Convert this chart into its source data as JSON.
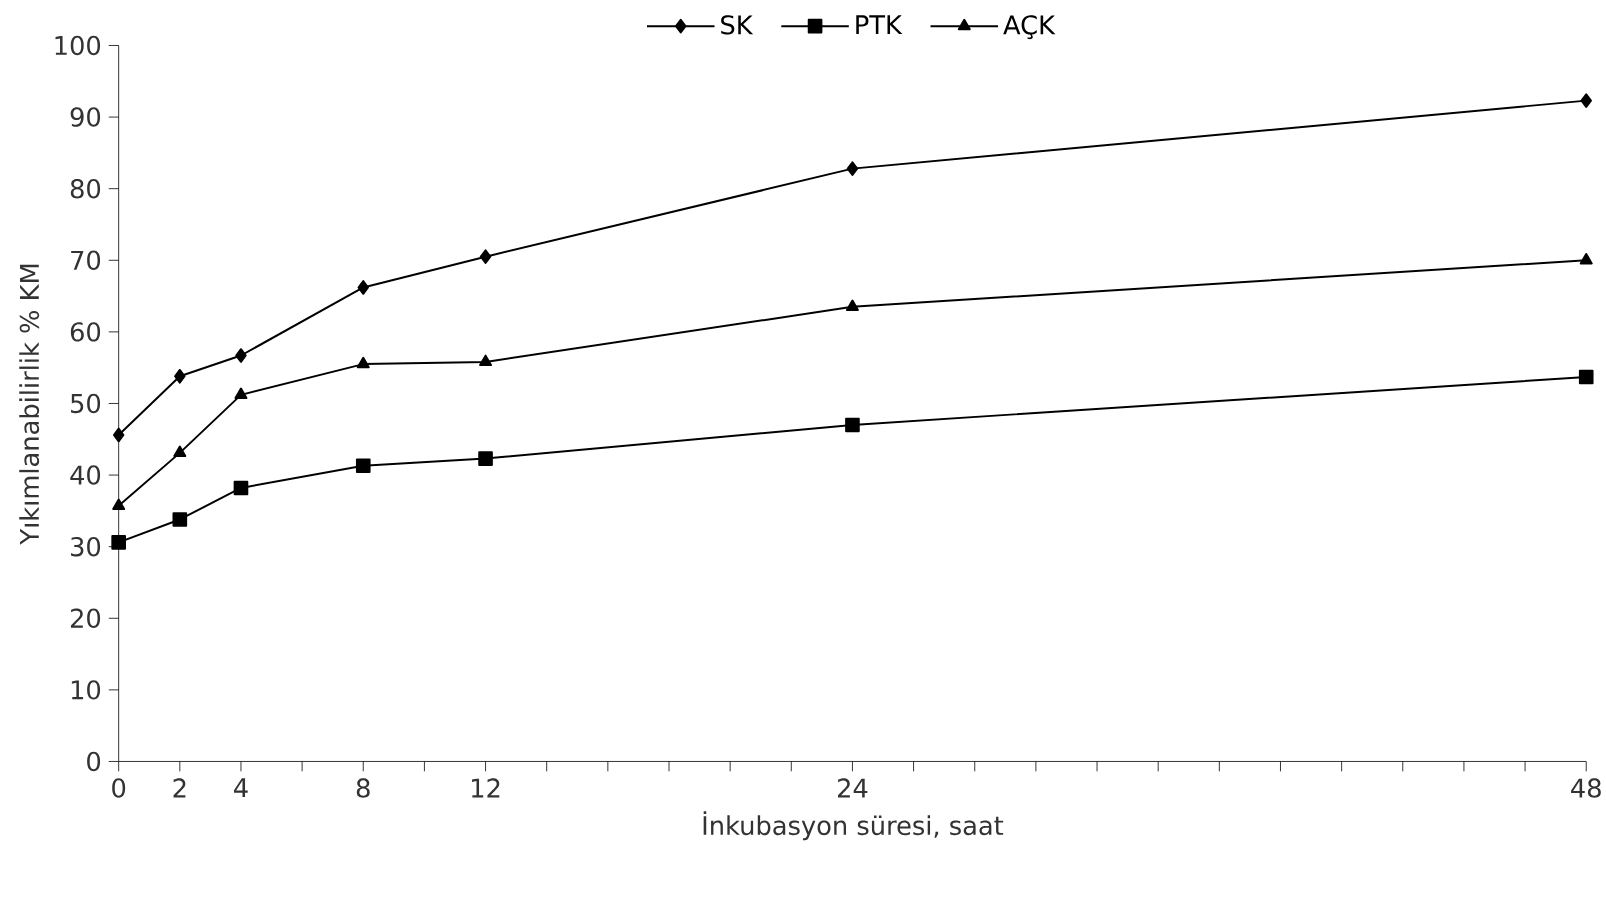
{
  "chart_data": {
    "type": "line",
    "xlabel": "İnkubasyon süresi, saat",
    "ylabel": "Yıkımlanabilirlik % KM",
    "x": [
      0,
      2,
      4,
      8,
      12,
      24,
      48
    ],
    "series": [
      {
        "name": "SK",
        "color": "#000000",
        "marker": "diamond",
        "values": [
          45.6,
          53.8,
          56.7,
          66.2,
          70.5,
          82.8,
          92.3
        ]
      },
      {
        "name": "PTK",
        "color": "#000000",
        "marker": "square",
        "values": [
          30.6,
          33.8,
          38.2,
          41.3,
          42.3,
          47.0,
          53.7
        ]
      },
      {
        "name": "AÇK",
        "color": "#000000",
        "marker": "triangle",
        "values": [
          35.7,
          43.1,
          51.2,
          55.5,
          55.8,
          63.5,
          70.0
        ]
      }
    ],
    "xlim": [
      0,
      48
    ],
    "xticks": [
      0,
      2,
      4,
      {
        "value": 6,
        "label": null
      },
      8,
      {
        "value": 10,
        "label": null
      },
      12,
      {
        "value": 14,
        "label": null
      },
      {
        "value": 16,
        "label": null
      },
      {
        "value": 18,
        "label": null
      },
      {
        "value": 20,
        "label": null
      },
      {
        "value": 22,
        "label": null
      },
      24,
      {
        "value": 26,
        "label": null
      },
      {
        "value": 28,
        "label": null
      },
      {
        "value": 30,
        "label": null
      },
      {
        "value": 32,
        "label": null
      },
      {
        "value": 34,
        "label": null
      },
      {
        "value": 36,
        "label": null
      },
      {
        "value": 38,
        "label": null
      },
      {
        "value": 40,
        "label": null
      },
      {
        "value": 42,
        "label": null
      },
      {
        "value": 44,
        "label": null
      },
      {
        "value": 46,
        "label": null
      },
      48
    ],
    "ylim": [
      0,
      100
    ],
    "yticks": [
      0,
      10,
      20,
      30,
      40,
      50,
      60,
      70,
      80,
      90,
      100
    ],
    "grid": false,
    "legend": "top",
    "line_style": "solid"
  }
}
